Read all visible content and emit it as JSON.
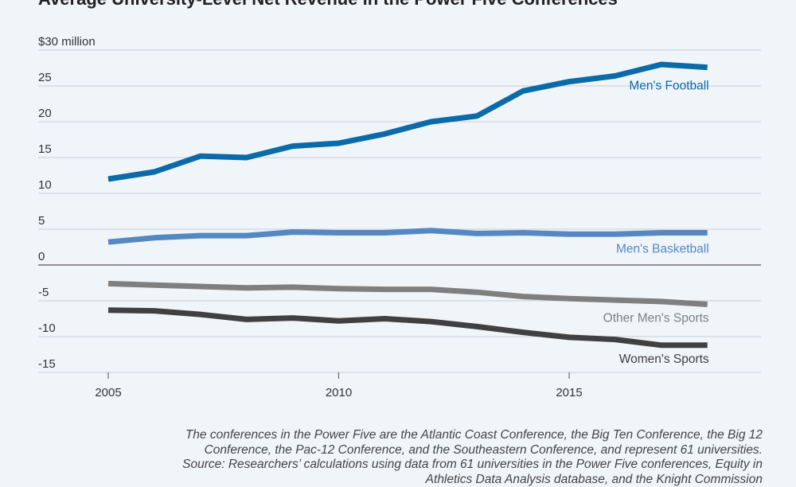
{
  "chart_data": {
    "type": "line",
    "title": "Average University-Level Net Revenue in the Power Five Conferences",
    "x": [
      2005,
      2006,
      2007,
      2008,
      2009,
      2010,
      2011,
      2012,
      2013,
      2014,
      2015,
      2016,
      2017,
      2018
    ],
    "xlim": [
      2000,
      2020
    ],
    "ylim": [
      -15,
      30
    ],
    "x_ticks": [
      2005,
      2010,
      2015
    ],
    "y_ticks": [
      30,
      25,
      20,
      15,
      10,
      5,
      0,
      -5,
      -10,
      -15
    ],
    "y_tick_labels": [
      "$30 million",
      "25",
      "20",
      "15",
      "10",
      "5",
      "0",
      "-5",
      "-10",
      "-15"
    ],
    "xlabel": "",
    "ylabel": "",
    "grid": true,
    "series": [
      {
        "name": "Men's Football",
        "color": "#0b6aa8",
        "values": [
          12.0,
          13.0,
          15.2,
          15.0,
          16.6,
          17.0,
          18.3,
          20.0,
          20.8,
          24.3,
          25.6,
          26.4,
          28.0,
          27.6
        ]
      },
      {
        "name": "Men's Basketball",
        "color": "#5588c3",
        "values": [
          3.2,
          3.8,
          4.1,
          4.1,
          4.6,
          4.5,
          4.5,
          4.8,
          4.4,
          4.5,
          4.3,
          4.3,
          4.5,
          4.5
        ]
      },
      {
        "name": "Other Men's Sports",
        "color": "#7f7f7f",
        "values": [
          -2.6,
          -2.8,
          -3.0,
          -3.2,
          -3.1,
          -3.3,
          -3.4,
          -3.4,
          -3.8,
          -4.4,
          -4.7,
          -4.9,
          -5.1,
          -5.5
        ]
      },
      {
        "name": "Women's Sports",
        "color": "#404040",
        "values": [
          -6.3,
          -6.4,
          -6.9,
          -7.6,
          -7.4,
          -7.8,
          -7.5,
          -7.9,
          -8.6,
          -9.4,
          -10.1,
          -10.4,
          -11.2,
          -11.2
        ]
      }
    ],
    "note_lines": [
      "The conferences in the Power Five are the Atlantic Coast Conference, the Big Ten Conference, the Big 12",
      "Conference, the Pac-12 Conference, and the Southeastern Conference, and represent 61 universities.",
      "Source: Researchers’ calculations using data from 61 universities in the Power Five conferences, Equity in",
      "Athletics Data Analysis database, and the Knight Commission"
    ]
  }
}
